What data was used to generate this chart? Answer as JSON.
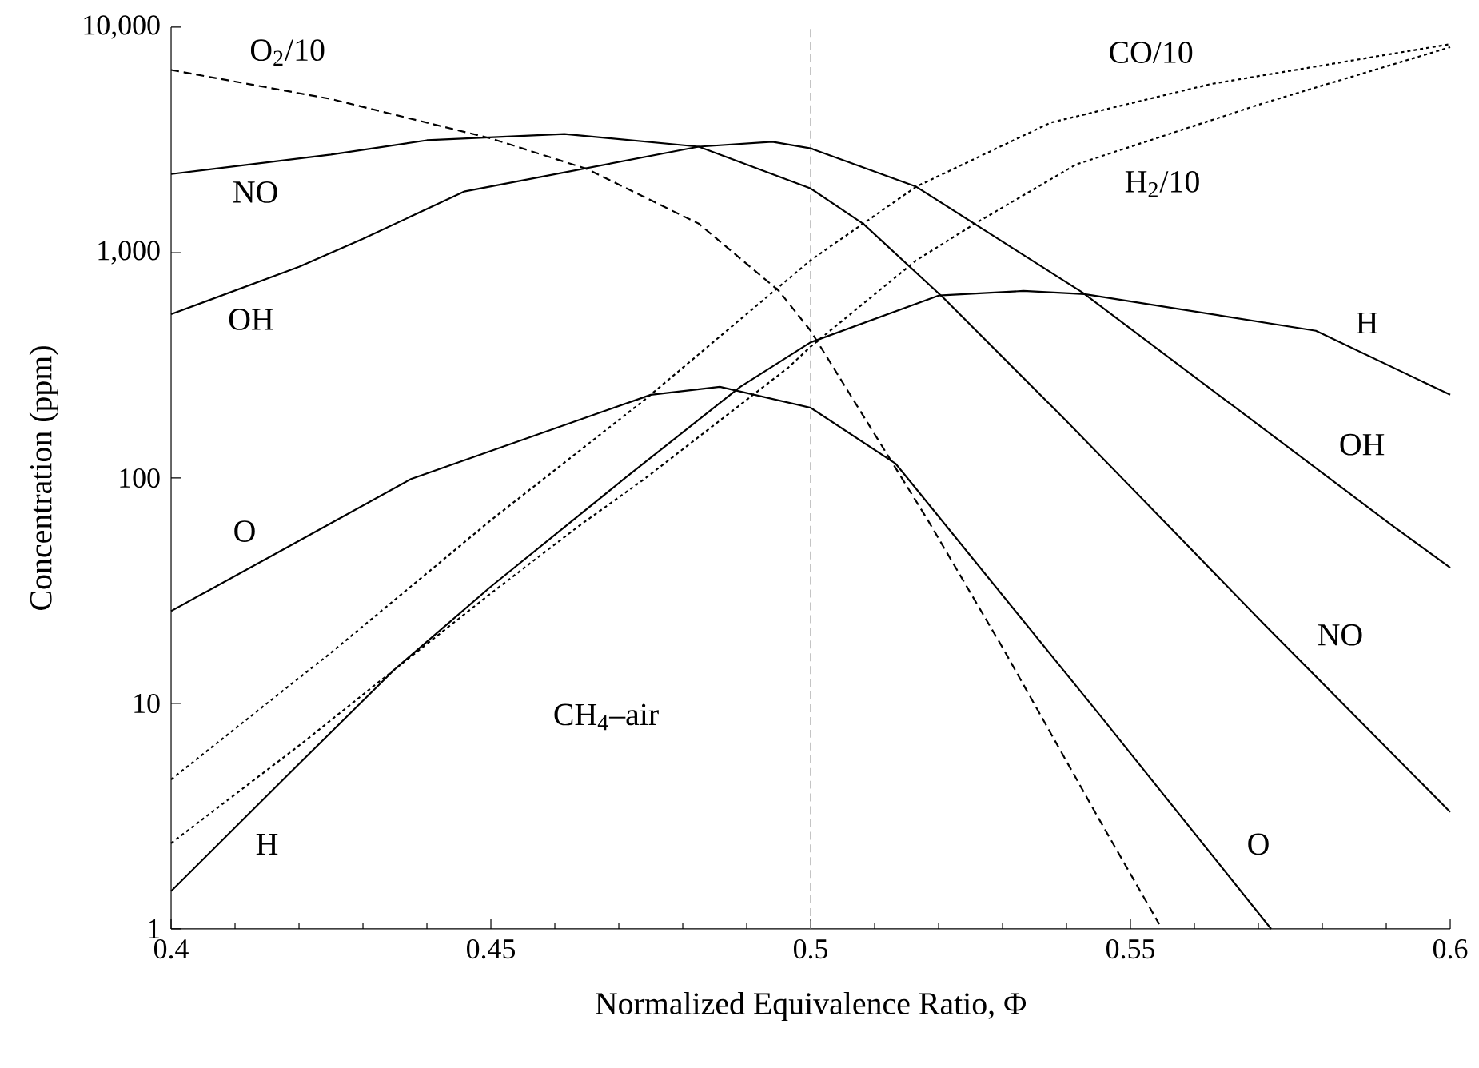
{
  "chart_data": {
    "type": "line",
    "xlabel": "Normalized Equivalence Ratio, Φ",
    "ylabel": "Concentration (ppm)",
    "xlim": [
      0.4,
      0.6
    ],
    "ylim": [
      1,
      10000
    ],
    "log": "y",
    "grid": false,
    "marker": "none",
    "xticks": [
      0.4,
      0.45,
      0.5,
      0.55,
      0.6
    ],
    "yticks": [
      1,
      10,
      100,
      {
        "value": 1000,
        "label": "1,000"
      },
      {
        "value": 10000,
        "label": "10,000"
      }
    ],
    "series": [
      {
        "color": "#000000",
        "line_style": "dashed",
        "x": [
          0.4,
          0.425,
          0.45,
          0.465,
          0.4825,
          0.495,
          0.5,
          0.51825,
          0.53,
          0.545,
          0.5545
        ],
        "values": [
          6460,
          4800,
          3210,
          2350,
          1343,
          678,
          450,
          65.5,
          17.7,
          3.1,
          1.05
        ]
      },
      {
        "color": "#000000",
        "line_style": "dotted",
        "x": [
          0.4,
          0.425,
          0.45,
          0.474,
          0.5,
          0.5165,
          0.5375,
          0.5625,
          0.6
        ],
        "values": [
          4.6,
          16.8,
          65,
          222,
          925,
          1960,
          3770,
          5590,
          8410
        ]
      },
      {
        "color": "#000000",
        "line_style": "dotted",
        "x": [
          0.4,
          0.42,
          0.435,
          0.45,
          0.464,
          0.474,
          0.4965,
          0.5,
          0.5165,
          0.5258,
          0.5415,
          0.5708,
          0.6
        ],
        "values": [
          2.4,
          6.5,
          14.2,
          30.8,
          62,
          99,
          309,
          383,
          924,
          1350,
          2460,
          4600,
          8150
        ]
      },
      {
        "color": "#000000",
        "line_style": "solid",
        "x": [
          0.4,
          0.425,
          0.44,
          0.4615,
          0.4825,
          0.5,
          0.50825,
          0.52075,
          0.54,
          0.5558,
          0.5708,
          0.6
        ],
        "values": [
          2230,
          2720,
          3150,
          3360,
          2950,
          1925,
          1340,
          630,
          179,
          62,
          22.6,
          3.3
        ]
      },
      {
        "color": "#000000",
        "line_style": "solid",
        "x": [
          0.4,
          0.42,
          0.43,
          0.4458,
          0.4825,
          0.494,
          0.5,
          0.5165,
          0.5425,
          0.5908,
          0.6
        ],
        "values": [
          533,
          865,
          1150,
          1865,
          2950,
          3100,
          2900,
          1960,
          665,
          62,
          40
        ]
      },
      {
        "color": "#000000",
        "line_style": "solid",
        "x": [
          0.4,
          0.42,
          0.4375,
          0.475,
          0.4858,
          0.5,
          0.51325,
          0.51525,
          0.54575,
          0.572
        ],
        "values": [
          25.7,
          52.7,
          99,
          234,
          254,
          205,
          116,
          99,
          8.5,
          1.0
        ]
      },
      {
        "color": "#000000",
        "line_style": "solid",
        "x": [
          0.4,
          0.42,
          0.435,
          0.45,
          0.4708,
          0.489,
          0.5,
          0.52,
          0.53325,
          0.5428,
          0.579,
          0.6
        ],
        "values": [
          1.47,
          5.4,
          14.2,
          33,
          99,
          254,
          400,
          645,
          676,
          655,
          450,
          234
        ]
      }
    ],
    "ref_lines": [
      {
        "axis": "x",
        "value": 0.5,
        "color": "#999999",
        "line_style": "dashed"
      }
    ],
    "annotations": [
      "O$_{2}$/10",
      "NO",
      "OH",
      "O",
      "H",
      "CH$_{4}$–air",
      "CO/10",
      "H$_{2}$/10",
      "H",
      "OH",
      "NO",
      "O"
    ]
  }
}
